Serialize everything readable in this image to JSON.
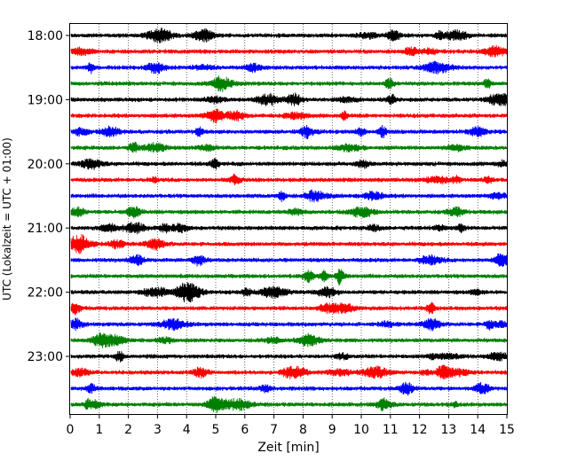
{
  "chart_data": {
    "type": "line",
    "title": "",
    "xlabel": "Zeit  [min]",
    "ylabel": "UTC (Lokalzeit = UTC + 01:00)",
    "xlim": [
      0,
      15
    ],
    "x_ticks": [
      "0",
      "1",
      "2",
      "3",
      "4",
      "5",
      "6",
      "7",
      "8",
      "9",
      "10",
      "11",
      "12",
      "13",
      "14",
      "15"
    ],
    "y_ticks": [
      "18:00",
      "19:00",
      "20:00",
      "21:00",
      "22:00",
      "23:00"
    ],
    "trace_interval_minutes": 15,
    "first_trace": "18:00",
    "last_trace": "23:45",
    "trace_count": 24,
    "color_cycle": [
      "#000000",
      "#ff0000",
      "#0000ff",
      "#008000"
    ],
    "grid": "vertical dotted lines at each minute",
    "legend": "none"
  }
}
